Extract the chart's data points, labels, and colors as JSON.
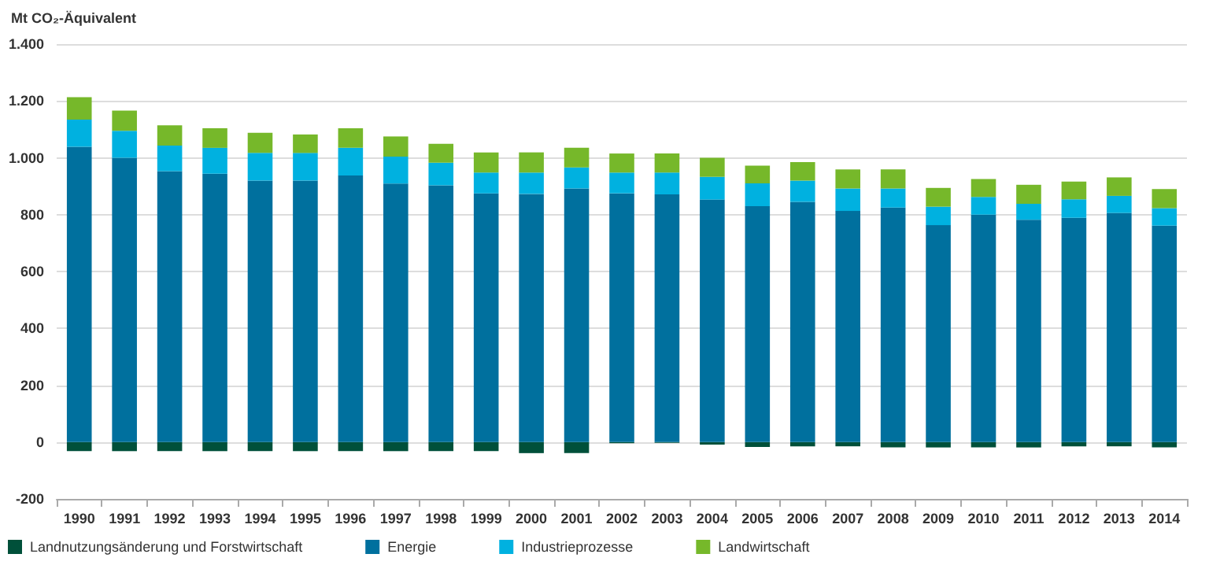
{
  "chart_data": {
    "type": "bar",
    "stacked": true,
    "ylabel": "Mt CO₂-Äquivalent",
    "categories": [
      "1990",
      "1991",
      "1992",
      "1993",
      "1994",
      "1995",
      "1996",
      "1997",
      "1998",
      "1999",
      "2000",
      "2001",
      "2002",
      "2003",
      "2004",
      "2005",
      "2006",
      "2007",
      "2008",
      "2009",
      "2010",
      "2011",
      "2012",
      "2013",
      "2014"
    ],
    "series": [
      {
        "name": "Landnutzungsänderung und Forstwirtschaft",
        "color": "#00503a",
        "values": [
          -32,
          -32,
          -32,
          -32,
          -32,
          -32,
          -32,
          -32,
          -32,
          -32,
          -39,
          -39,
          -4,
          -3,
          -9,
          -17,
          -15,
          -15,
          -19,
          -19,
          -19,
          -19,
          -15,
          -15,
          -19
        ]
      },
      {
        "name": "Energie",
        "color": "#00709e",
        "values": [
          1039,
          1000,
          953,
          944,
          920,
          920,
          938,
          909,
          903,
          875,
          873,
          892,
          875,
          871,
          853,
          830,
          845,
          813,
          825,
          763,
          800,
          782,
          789,
          806,
          761
        ]
      },
      {
        "name": "Industrieprozesse",
        "color": "#00b1e0",
        "values": [
          95,
          95,
          90,
          91,
          97,
          97,
          97,
          95,
          80,
          73,
          75,
          74,
          73,
          77,
          80,
          80,
          75,
          79,
          67,
          65,
          62,
          56,
          65,
          60,
          62
        ]
      },
      {
        "name": "Landwirtschaft",
        "color": "#76b82a",
        "values": [
          79,
          71,
          71,
          69,
          71,
          65,
          69,
          71,
          66,
          71,
          71,
          69,
          67,
          67,
          67,
          62,
          65,
          67,
          67,
          66,
          63,
          67,
          62,
          65,
          67
        ]
      }
    ],
    "ylim": [
      -200,
      1400
    ],
    "yticks": [
      -200,
      0,
      200,
      400,
      600,
      800,
      {
        "value": 1000,
        "label": "1.000"
      },
      {
        "value": 1200,
        "label": "1.200"
      },
      {
        "value": 1400,
        "label": "1.400"
      }
    ],
    "grid": "y",
    "legend": "bottom"
  }
}
